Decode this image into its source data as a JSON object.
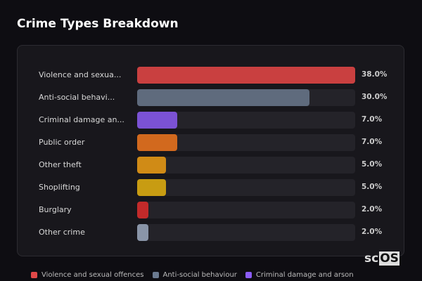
{
  "title": "Crime Types Breakdown",
  "logo": {
    "pre": "sc",
    "box": "OS"
  },
  "chart_data": {
    "type": "bar",
    "orientation": "horizontal",
    "categories": [
      "Violence and sexua...",
      "Anti-social behavi...",
      "Criminal damage an...",
      "Public order",
      "Other theft",
      "Shoplifting",
      "Burglary",
      "Other crime"
    ],
    "values": [
      38.0,
      30.0,
      7.0,
      7.0,
      5.0,
      5.0,
      2.0,
      2.0
    ],
    "value_labels": [
      "38.0%",
      "30.0%",
      "7.0%",
      "7.0%",
      "5.0%",
      "5.0%",
      "2.0%",
      "2.0%"
    ],
    "colors": [
      "#c94040",
      "#5f6b7d",
      "#7b52d4",
      "#d2691e",
      "#d08b16",
      "#c89c12",
      "#c22a2a",
      "#8a95a8"
    ],
    "xlim": [
      0,
      38
    ]
  },
  "legend": [
    {
      "label": "Violence and sexual offences",
      "color": "#e04848"
    },
    {
      "label": "Anti-social behaviour",
      "color": "#6b7a90"
    },
    {
      "label": "Criminal damage and arson",
      "color": "#8b5cf6"
    }
  ]
}
